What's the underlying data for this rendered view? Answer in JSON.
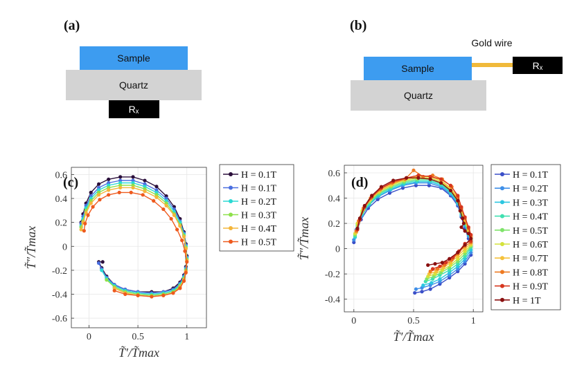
{
  "panels": {
    "a": {
      "label": "(a)",
      "sample": "Sample",
      "quartz": "Quartz",
      "rx": "Rₓ"
    },
    "b": {
      "label": "(b)",
      "sample": "Sample",
      "quartz": "Quartz",
      "rx": "Rₓ",
      "wire": "Gold wire"
    }
  },
  "colors": {
    "sample": "#3d9cf0",
    "quartz": "#d3d3d3",
    "rx": "#000000",
    "wire": "#f0b93a"
  },
  "chart_data": [
    {
      "id": "c",
      "panel_label": "(c)",
      "type": "line",
      "xlabel": "T̃′/T̃max",
      "ylabel": "T̃″/T̃max",
      "xlim": [
        -0.18,
        1.2
      ],
      "ylim": [
        -0.68,
        0.66
      ],
      "xticks": [
        0,
        0.5,
        1
      ],
      "xtick_labels": [
        "0",
        "0.5",
        "1"
      ],
      "yticks": [
        0.6,
        0.4,
        0.2,
        0,
        -0.2,
        -0.4,
        -0.6
      ],
      "ytick_labels": [
        "0.6",
        "0.4",
        "0.2",
        "0",
        "-0.2",
        "-0.4",
        "-0.6"
      ],
      "grid": true,
      "legend_position": "outside-right",
      "series": [
        {
          "name": "H = 0.1T",
          "color": "#2b0f3b",
          "x": [
            -0.08,
            -0.06,
            -0.03,
            0.02,
            0.1,
            0.2,
            0.32,
            0.45,
            0.57,
            0.69,
            0.79,
            0.87,
            0.93,
            0.97,
            0.99,
            1.0,
            0.99,
            0.97,
            0.93,
            0.86,
            0.76,
            0.64,
            0.5,
            0.37,
            0.26,
            0.18,
            0.13,
            0.1,
            0.14
          ],
          "y": [
            0.2,
            0.27,
            0.36,
            0.45,
            0.52,
            0.56,
            0.58,
            0.58,
            0.55,
            0.5,
            0.42,
            0.33,
            0.23,
            0.12,
            0.02,
            -0.08,
            -0.17,
            -0.24,
            -0.3,
            -0.35,
            -0.38,
            -0.38,
            -0.38,
            -0.36,
            -0.32,
            -0.25,
            -0.18,
            -0.13,
            -0.13
          ]
        },
        {
          "name": "H = 0.1T",
          "color": "#4a6fe0",
          "x": [
            -0.08,
            -0.06,
            -0.03,
            0.02,
            0.1,
            0.2,
            0.32,
            0.45,
            0.57,
            0.69,
            0.79,
            0.87,
            0.93,
            0.97,
            0.99,
            1.0,
            0.99,
            0.97,
            0.93,
            0.86,
            0.76,
            0.64,
            0.5,
            0.37,
            0.26,
            0.18,
            0.13,
            0.1
          ],
          "y": [
            0.19,
            0.25,
            0.34,
            0.42,
            0.49,
            0.53,
            0.55,
            0.55,
            0.52,
            0.47,
            0.4,
            0.31,
            0.21,
            0.11,
            0.01,
            -0.09,
            -0.18,
            -0.25,
            -0.31,
            -0.36,
            -0.38,
            -0.39,
            -0.38,
            -0.36,
            -0.32,
            -0.26,
            -0.19,
            -0.14
          ]
        },
        {
          "name": "H = 0.2T",
          "color": "#2ad9d3",
          "x": [
            -0.08,
            -0.06,
            -0.03,
            0.02,
            0.1,
            0.2,
            0.32,
            0.45,
            0.57,
            0.69,
            0.79,
            0.87,
            0.93,
            0.97,
            0.99,
            1.0,
            0.99,
            0.97,
            0.93,
            0.86,
            0.76,
            0.64,
            0.5,
            0.37,
            0.26,
            0.18,
            0.13
          ],
          "y": [
            0.17,
            0.23,
            0.32,
            0.4,
            0.47,
            0.51,
            0.53,
            0.53,
            0.5,
            0.45,
            0.38,
            0.29,
            0.2,
            0.1,
            0.0,
            -0.1,
            -0.19,
            -0.26,
            -0.32,
            -0.37,
            -0.39,
            -0.4,
            -0.39,
            -0.37,
            -0.33,
            -0.27,
            -0.2
          ]
        },
        {
          "name": "H = 0.3T",
          "color": "#8ee04a",
          "x": [
            -0.08,
            -0.06,
            -0.03,
            0.02,
            0.1,
            0.2,
            0.32,
            0.45,
            0.57,
            0.69,
            0.79,
            0.87,
            0.93,
            0.97,
            0.99,
            1.0,
            0.99,
            0.97,
            0.93,
            0.86,
            0.76,
            0.64,
            0.5,
            0.37,
            0.26,
            0.18
          ],
          "y": [
            0.16,
            0.21,
            0.3,
            0.38,
            0.45,
            0.49,
            0.51,
            0.51,
            0.48,
            0.43,
            0.36,
            0.27,
            0.18,
            0.09,
            -0.01,
            -0.11,
            -0.2,
            -0.27,
            -0.33,
            -0.38,
            -0.4,
            -0.41,
            -0.4,
            -0.38,
            -0.34,
            -0.28
          ]
        },
        {
          "name": "H = 0.4T",
          "color": "#f4b53a",
          "x": [
            -0.08,
            -0.06,
            -0.03,
            0.02,
            0.1,
            0.2,
            0.32,
            0.45,
            0.57,
            0.69,
            0.79,
            0.87,
            0.93,
            0.97,
            0.99,
            1.0,
            0.99,
            0.97,
            0.93,
            0.86,
            0.76,
            0.64,
            0.5,
            0.37,
            0.26
          ],
          "y": [
            0.14,
            0.2,
            0.28,
            0.36,
            0.43,
            0.47,
            0.49,
            0.49,
            0.46,
            0.41,
            0.34,
            0.26,
            0.17,
            0.08,
            -0.02,
            -0.12,
            -0.21,
            -0.28,
            -0.34,
            -0.39,
            -0.41,
            -0.42,
            -0.41,
            -0.39,
            -0.35
          ]
        },
        {
          "name": "H = 0.5T",
          "color": "#ee5a1e",
          "x": [
            -0.05,
            -0.04,
            -0.01,
            0.04,
            0.11,
            0.2,
            0.31,
            0.43,
            0.55,
            0.66,
            0.76,
            0.84,
            0.9,
            0.95,
            0.98,
            1.0,
            0.99,
            0.97,
            0.93,
            0.86,
            0.76,
            0.64,
            0.5,
            0.37,
            0.26
          ],
          "y": [
            0.13,
            0.19,
            0.26,
            0.33,
            0.39,
            0.43,
            0.45,
            0.45,
            0.43,
            0.38,
            0.31,
            0.23,
            0.14,
            0.05,
            -0.04,
            -0.13,
            -0.22,
            -0.29,
            -0.35,
            -0.39,
            -0.41,
            -0.42,
            -0.41,
            -0.4,
            -0.37
          ]
        }
      ]
    },
    {
      "id": "d",
      "panel_label": "(d)",
      "type": "line",
      "xlabel": "T̃′/T̃max",
      "ylabel": "T̃″/T̃max",
      "xlim": [
        -0.08,
        1.08
      ],
      "ylim": [
        -0.5,
        0.66
      ],
      "xticks": [
        0,
        0.5,
        1
      ],
      "xtick_labels": [
        "0",
        "0.5",
        "1"
      ],
      "yticks": [
        0.6,
        0.4,
        0.2,
        0,
        -0.2,
        -0.4
      ],
      "ytick_labels": [
        "0.6",
        "0.4",
        "0.2",
        "0",
        "-0.2",
        "-0.4"
      ],
      "grid": true,
      "legend_position": "outside-right",
      "series": [
        {
          "name": "H = 0.1T",
          "color": "#3a4fc8",
          "x": [
            0.0,
            0.02,
            0.06,
            0.12,
            0.2,
            0.3,
            0.41,
            0.52,
            0.63,
            0.73,
            0.81,
            0.87,
            0.9,
            0.93,
            0.96,
            0.98,
            0.98,
            0.93,
            0.87,
            0.8,
            0.72,
            0.64,
            0.57,
            0.51
          ],
          "y": [
            0.05,
            0.13,
            0.23,
            0.32,
            0.39,
            0.44,
            0.48,
            0.5,
            0.5,
            0.48,
            0.42,
            0.34,
            0.25,
            0.16,
            0.08,
            0.02,
            -0.05,
            -0.12,
            -0.18,
            -0.23,
            -0.28,
            -0.32,
            -0.34,
            -0.35
          ]
        },
        {
          "name": "H = 0.2T",
          "color": "#3f8fe8",
          "x": [
            0.0,
            0.02,
            0.06,
            0.12,
            0.2,
            0.3,
            0.41,
            0.52,
            0.63,
            0.73,
            0.81,
            0.87,
            0.9,
            0.93,
            0.96,
            0.98,
            0.98,
            0.93,
            0.87,
            0.8,
            0.72,
            0.64,
            0.57,
            0.52
          ],
          "y": [
            0.07,
            0.15,
            0.25,
            0.34,
            0.41,
            0.46,
            0.5,
            0.52,
            0.52,
            0.49,
            0.43,
            0.35,
            0.26,
            0.18,
            0.1,
            0.04,
            -0.03,
            -0.1,
            -0.16,
            -0.21,
            -0.26,
            -0.29,
            -0.31,
            -0.32
          ]
        },
        {
          "name": "H = 0.3T",
          "color": "#2bc6e0",
          "x": [
            0.01,
            0.03,
            0.07,
            0.13,
            0.21,
            0.31,
            0.42,
            0.53,
            0.64,
            0.73,
            0.81,
            0.87,
            0.9,
            0.93,
            0.96,
            0.98,
            0.98,
            0.93,
            0.87,
            0.8,
            0.72,
            0.65,
            0.58
          ],
          "y": [
            0.09,
            0.17,
            0.27,
            0.35,
            0.42,
            0.47,
            0.51,
            0.53,
            0.53,
            0.5,
            0.44,
            0.36,
            0.27,
            0.19,
            0.11,
            0.05,
            -0.01,
            -0.08,
            -0.14,
            -0.19,
            -0.24,
            -0.27,
            -0.29
          ]
        },
        {
          "name": "H = 0.4T",
          "color": "#3fe0b0",
          "x": [
            0.01,
            0.03,
            0.07,
            0.13,
            0.21,
            0.31,
            0.42,
            0.53,
            0.64,
            0.73,
            0.81,
            0.87,
            0.9,
            0.93,
            0.96,
            0.98,
            0.98,
            0.93,
            0.87,
            0.8,
            0.72,
            0.66,
            0.6
          ],
          "y": [
            0.1,
            0.18,
            0.28,
            0.36,
            0.43,
            0.48,
            0.52,
            0.54,
            0.54,
            0.51,
            0.45,
            0.37,
            0.28,
            0.2,
            0.12,
            0.06,
            0.01,
            -0.06,
            -0.12,
            -0.17,
            -0.21,
            -0.24,
            -0.26
          ]
        },
        {
          "name": "H = 0.5T",
          "color": "#7fe36a",
          "x": [
            0.01,
            0.03,
            0.07,
            0.13,
            0.21,
            0.31,
            0.42,
            0.53,
            0.64,
            0.73,
            0.81,
            0.87,
            0.9,
            0.93,
            0.96,
            0.98,
            0.98,
            0.93,
            0.87,
            0.8,
            0.73,
            0.67,
            0.61
          ],
          "y": [
            0.11,
            0.19,
            0.29,
            0.37,
            0.44,
            0.49,
            0.53,
            0.55,
            0.55,
            0.52,
            0.46,
            0.38,
            0.29,
            0.21,
            0.13,
            0.07,
            0.02,
            -0.04,
            -0.1,
            -0.15,
            -0.19,
            -0.22,
            -0.24
          ]
        },
        {
          "name": "H = 0.6T",
          "color": "#d4e23a",
          "x": [
            0.01,
            0.03,
            0.07,
            0.13,
            0.21,
            0.31,
            0.42,
            0.53,
            0.64,
            0.73,
            0.81,
            0.87,
            0.9,
            0.93,
            0.96,
            0.98,
            0.98,
            0.93,
            0.87,
            0.81,
            0.74,
            0.68,
            0.62
          ],
          "y": [
            0.12,
            0.2,
            0.3,
            0.38,
            0.45,
            0.5,
            0.54,
            0.56,
            0.56,
            0.53,
            0.47,
            0.39,
            0.3,
            0.22,
            0.14,
            0.08,
            0.03,
            -0.02,
            -0.08,
            -0.13,
            -0.17,
            -0.2,
            -0.22
          ]
        },
        {
          "name": "H = 0.7T",
          "color": "#f5c13a",
          "x": [
            0.02,
            0.04,
            0.08,
            0.14,
            0.22,
            0.32,
            0.43,
            0.53,
            0.64,
            0.73,
            0.81,
            0.87,
            0.9,
            0.93,
            0.96,
            0.98,
            0.98,
            0.93,
            0.87,
            0.81,
            0.75,
            0.69,
            0.63
          ],
          "y": [
            0.13,
            0.21,
            0.31,
            0.39,
            0.46,
            0.51,
            0.55,
            0.57,
            0.57,
            0.54,
            0.48,
            0.4,
            0.31,
            0.23,
            0.15,
            0.09,
            0.04,
            0.0,
            -0.06,
            -0.11,
            -0.15,
            -0.18,
            -0.2
          ]
        },
        {
          "name": "H = 0.8T",
          "color": "#ee7a22",
          "x": [
            0.02,
            0.04,
            0.08,
            0.14,
            0.22,
            0.32,
            0.43,
            0.5,
            0.58,
            0.66,
            0.74,
            0.82,
            0.87,
            0.9,
            0.93,
            0.96,
            0.98,
            0.98,
            0.93,
            0.87,
            0.82,
            0.76,
            0.7,
            0.64
          ],
          "y": [
            0.14,
            0.22,
            0.32,
            0.4,
            0.47,
            0.52,
            0.55,
            0.62,
            0.57,
            0.58,
            0.55,
            0.49,
            0.41,
            0.32,
            0.24,
            0.16,
            0.1,
            0.05,
            0.02,
            -0.04,
            -0.09,
            -0.13,
            -0.16,
            -0.18
          ]
        },
        {
          "name": "H = 0.9T",
          "color": "#d6361e",
          "x": [
            0.03,
            0.05,
            0.09,
            0.15,
            0.23,
            0.33,
            0.44,
            0.54,
            0.64,
            0.73,
            0.81,
            0.87,
            0.9,
            0.93,
            0.96,
            0.98,
            0.98,
            0.93,
            0.88,
            0.83,
            0.77,
            0.72,
            0.66
          ],
          "y": [
            0.15,
            0.23,
            0.33,
            0.41,
            0.48,
            0.53,
            0.56,
            0.58,
            0.57,
            0.55,
            0.5,
            0.42,
            0.33,
            0.25,
            0.17,
            0.11,
            0.06,
            0.04,
            -0.02,
            -0.07,
            -0.11,
            -0.14,
            -0.16
          ]
        },
        {
          "name": "H = 1T",
          "color": "#8a1010",
          "x": [
            0.03,
            0.05,
            0.09,
            0.15,
            0.23,
            0.33,
            0.44,
            0.54,
            0.64,
            0.73,
            0.81,
            0.87,
            0.89,
            0.91,
            0.92,
            0.9,
            0.93,
            0.96,
            0.98,
            0.93,
            0.87,
            0.8,
            0.74,
            0.68,
            0.62
          ],
          "y": [
            0.16,
            0.24,
            0.34,
            0.42,
            0.49,
            0.54,
            0.56,
            0.56,
            0.55,
            0.52,
            0.46,
            0.38,
            0.3,
            0.24,
            0.2,
            0.17,
            0.14,
            0.12,
            0.08,
            0.03,
            -0.03,
            -0.08,
            -0.11,
            -0.12,
            -0.13
          ]
        }
      ]
    }
  ]
}
